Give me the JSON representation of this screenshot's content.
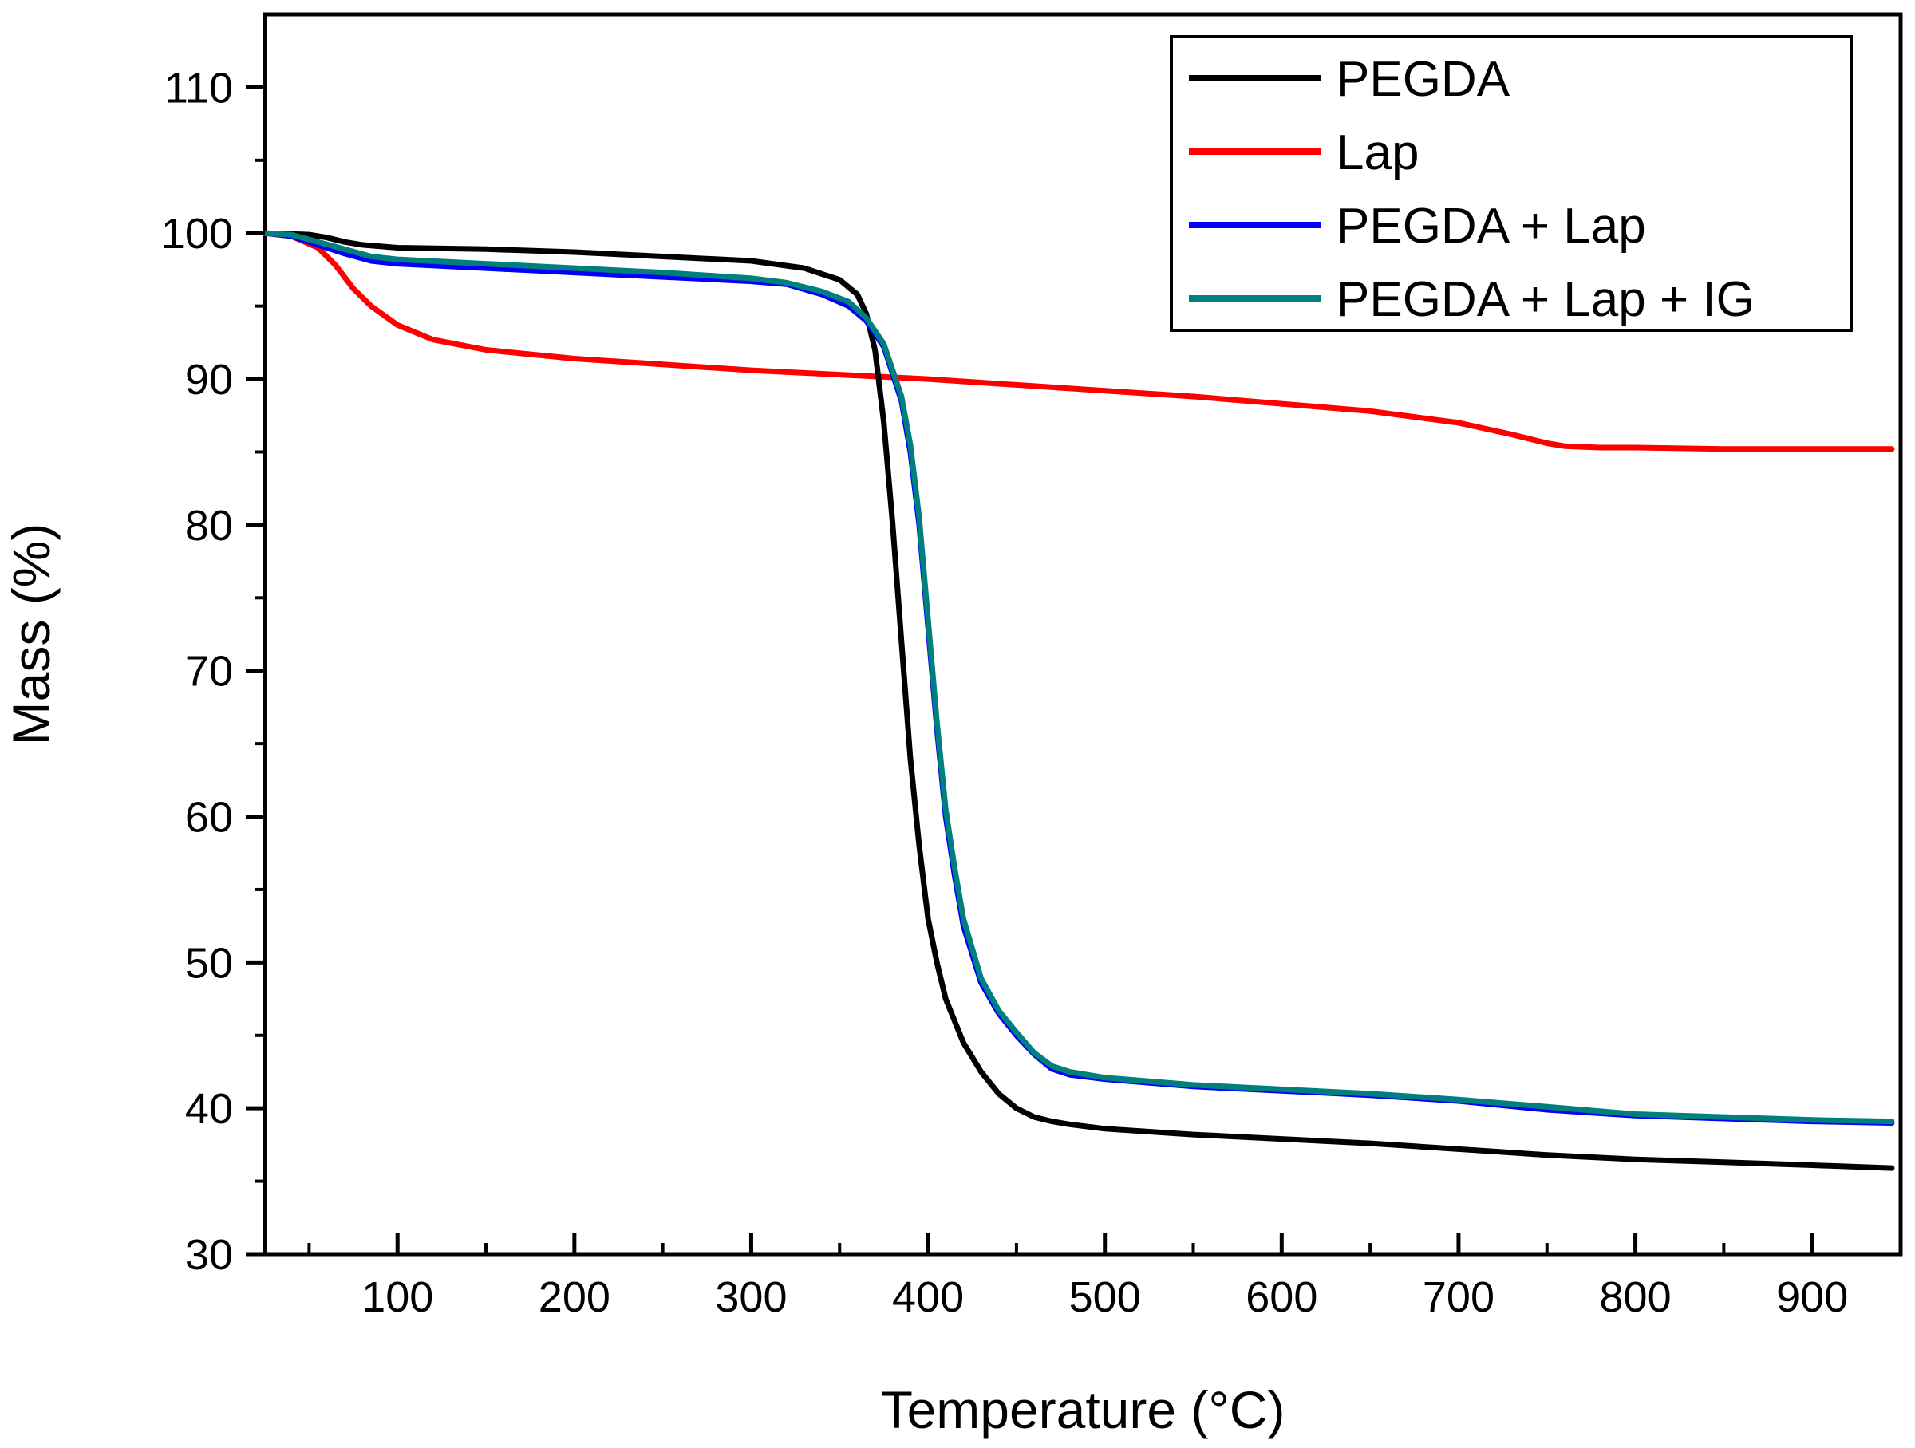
{
  "chart_data": {
    "type": "line",
    "title": "",
    "xlabel": "Temperature (°C)",
    "ylabel": "Mass (%)",
    "xlim": [
      25,
      950
    ],
    "ylim": [
      30,
      115
    ],
    "x_ticks": [
      100,
      200,
      300,
      400,
      500,
      600,
      700,
      800,
      900
    ],
    "x_minor_ticks": [
      50,
      150,
      250,
      350,
      450,
      550,
      650,
      750,
      850
    ],
    "y_ticks": [
      30,
      40,
      50,
      60,
      70,
      80,
      90,
      100,
      110
    ],
    "y_minor_ticks": [
      35,
      45,
      55,
      65,
      75,
      85,
      95,
      105
    ],
    "legend_position": "top-right",
    "series": [
      {
        "name": "PEGDA",
        "color": "#000000",
        "x": [
          25,
          50,
          60,
          70,
          80,
          100,
          150,
          200,
          250,
          300,
          330,
          350,
          360,
          365,
          370,
          375,
          380,
          385,
          390,
          395,
          400,
          405,
          410,
          420,
          430,
          440,
          450,
          460,
          470,
          480,
          500,
          550,
          600,
          650,
          700,
          750,
          800,
          850,
          900,
          945
        ],
        "values": [
          100,
          99.9,
          99.7,
          99.4,
          99.2,
          99.0,
          98.9,
          98.7,
          98.4,
          98.1,
          97.6,
          96.8,
          95.8,
          94.5,
          92,
          87,
          80,
          72,
          64,
          58,
          53,
          50,
          47.5,
          44.5,
          42.5,
          41,
          40,
          39.4,
          39.1,
          38.9,
          38.6,
          38.2,
          37.9,
          37.6,
          37.2,
          36.8,
          36.5,
          36.3,
          36.1,
          35.9
        ]
      },
      {
        "name": "Lap",
        "color": "#ff0000",
        "x": [
          25,
          40,
          55,
          65,
          75,
          85,
          100,
          120,
          150,
          200,
          250,
          300,
          350,
          400,
          450,
          500,
          550,
          600,
          650,
          700,
          730,
          750,
          760,
          780,
          800,
          850,
          900,
          945
        ],
        "values": [
          100,
          99.8,
          99,
          97.8,
          96.2,
          95,
          93.7,
          92.7,
          92,
          91.4,
          91,
          90.6,
          90.3,
          90,
          89.6,
          89.2,
          88.8,
          88.3,
          87.8,
          87,
          86.2,
          85.6,
          85.4,
          85.3,
          85.3,
          85.2,
          85.2,
          85.2
        ]
      },
      {
        "name": "PEGDA + Lap",
        "color": "#0000ff",
        "x": [
          25,
          40,
          55,
          70,
          85,
          100,
          150,
          200,
          250,
          300,
          320,
          340,
          355,
          365,
          375,
          385,
          390,
          395,
          400,
          405,
          410,
          415,
          420,
          430,
          440,
          450,
          460,
          470,
          480,
          500,
          550,
          600,
          650,
          700,
          750,
          800,
          850,
          900,
          945
        ],
        "values": [
          100,
          99.8,
          99.2,
          98.6,
          98.1,
          97.9,
          97.6,
          97.3,
          97,
          96.7,
          96.5,
          95.8,
          95,
          94,
          92.2,
          88.5,
          85,
          80,
          73,
          66,
          60,
          56,
          52.5,
          48.6,
          46.5,
          45,
          43.7,
          42.7,
          42.3,
          42,
          41.5,
          41.2,
          40.9,
          40.5,
          39.9,
          39.5,
          39.3,
          39.1,
          39.0
        ]
      },
      {
        "name": "PEGDA + Lap + IG",
        "color": "#007f7f",
        "x": [
          25,
          40,
          55,
          70,
          85,
          100,
          150,
          200,
          250,
          300,
          320,
          340,
          355,
          365,
          375,
          385,
          390,
          395,
          400,
          405,
          410,
          415,
          420,
          430,
          440,
          450,
          460,
          470,
          480,
          500,
          550,
          600,
          650,
          700,
          750,
          800,
          850,
          900,
          945
        ],
        "values": [
          100,
          99.9,
          99.4,
          98.9,
          98.4,
          98.2,
          97.9,
          97.6,
          97.3,
          96.9,
          96.6,
          96,
          95.3,
          94.2,
          92.4,
          88.8,
          85.5,
          80.5,
          73.5,
          66.5,
          60.5,
          56.5,
          53,
          48.9,
          46.7,
          45.2,
          43.8,
          42.9,
          42.5,
          42.1,
          41.6,
          41.3,
          41,
          40.6,
          40.1,
          39.6,
          39.4,
          39.2,
          39.1
        ]
      }
    ]
  }
}
